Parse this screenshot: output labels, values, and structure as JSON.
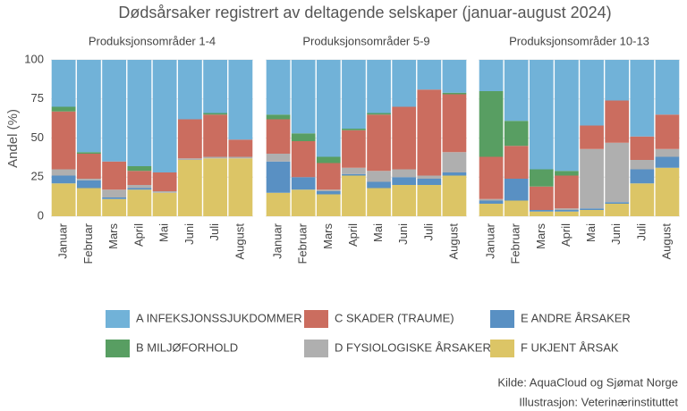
{
  "title": "Dødsårsaker registrert av deltagende selskaper (januar-august 2024)",
  "source": "Kilde: AquaCloud og Sjømat Norge",
  "credit": "Illustrasjon: Veterinærinstituttet",
  "chart_data": {
    "type": "bar",
    "stacked": true,
    "ylabel": "Andel (%)",
    "ylim": [
      0,
      100
    ],
    "yticks": [
      0,
      25,
      50,
      75,
      100
    ],
    "grid": true,
    "categories": [
      "Januar",
      "Februar",
      "Mars",
      "April",
      "Mai",
      "Juni",
      "Juli",
      "August"
    ],
    "panels": [
      "Produksjonsområder 1-4",
      "Produksjonsområder 5-9",
      "Produksjonsområder 10-13"
    ],
    "series": [
      {
        "name": "A INFEKSJONSSJUKDOMMER",
        "color": "#71b2d8",
        "values": [
          [
            30,
            59,
            65,
            68,
            72,
            38,
            34,
            51
          ],
          [
            35,
            47,
            62,
            44,
            34,
            30,
            19,
            21
          ],
          [
            20,
            39,
            70,
            71,
            42,
            26,
            49,
            35
          ]
        ]
      },
      {
        "name": "B MILJØFORHOLD",
        "color": "#589e62",
        "values": [
          [
            3,
            1,
            0,
            3,
            0,
            0,
            1,
            0
          ],
          [
            3,
            5,
            4,
            1,
            1,
            0,
            0,
            1
          ],
          [
            42,
            16,
            11,
            3,
            0,
            0,
            0,
            0
          ]
        ]
      },
      {
        "name": "C SKADER (TRAUME)",
        "color": "#cb6d5f",
        "values": [
          [
            37,
            16,
            18,
            9,
            12,
            25,
            27,
            11
          ],
          [
            22,
            23,
            17,
            24,
            36,
            40,
            55,
            37
          ],
          [
            27,
            21,
            15,
            21,
            15,
            27,
            15,
            22
          ]
        ]
      },
      {
        "name": "D FYSIOLOGISKE ÅRSAKER",
        "color": "#afafaf",
        "values": [
          [
            4,
            1,
            5,
            2,
            1,
            1,
            1,
            1
          ],
          [
            5,
            0,
            1,
            4,
            7,
            5,
            2,
            13
          ],
          [
            1,
            0,
            0,
            1,
            38,
            38,
            6,
            5
          ]
        ]
      },
      {
        "name": "E ANDRE ÅRSAKER",
        "color": "#5990c3",
        "values": [
          [
            5,
            5,
            1,
            1,
            0,
            0,
            0,
            0
          ],
          [
            20,
            8,
            2,
            1,
            4,
            5,
            4,
            2
          ],
          [
            2,
            14,
            1,
            1,
            1,
            1,
            9,
            7
          ]
        ]
      },
      {
        "name": "F UKJENT ÅRSAK",
        "color": "#dcc566",
        "values": [
          [
            21,
            18,
            11,
            17,
            15,
            36,
            37,
            37
          ],
          [
            15,
            17,
            14,
            26,
            18,
            20,
            20,
            26
          ],
          [
            8,
            10,
            3,
            3,
            4,
            8,
            21,
            31
          ]
        ]
      }
    ]
  }
}
